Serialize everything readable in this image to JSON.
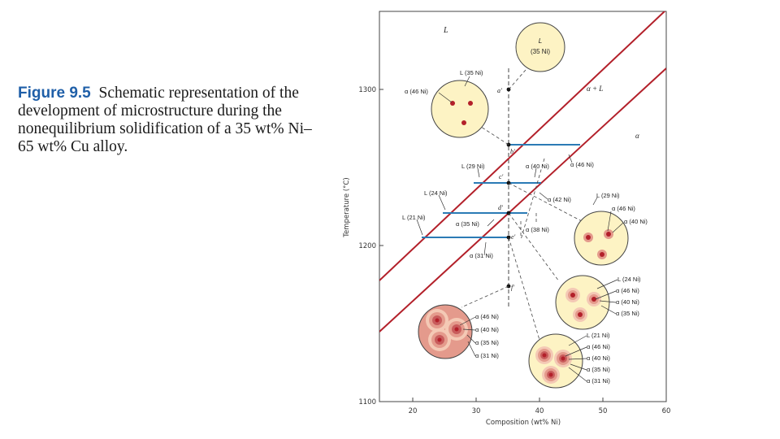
{
  "caption": {
    "figure_label": "Figure 9.5",
    "text": "Schematic representation of the development of microstructure during the nonequilibrium solidification of a 35 wt% Ni–65 wt% Cu alloy."
  },
  "axes": {
    "xlabel": "Composition (wt% Ni)",
    "ylabel": "Temperature (°C)",
    "x_ticks": [
      "20",
      "30",
      "40",
      "50",
      "60"
    ],
    "y_ticks": [
      "1100",
      "1200",
      "1300"
    ]
  },
  "regions": {
    "liquid": "L",
    "two_phase": "α + L",
    "solid": "α"
  },
  "points": {
    "a": "a'",
    "b": "b'",
    "c": "c'",
    "d": "d'",
    "e": "e'",
    "f": "f'"
  },
  "labels": {
    "circle_a": [
      "L",
      "(35 Ni)"
    ],
    "circle_b_l": "L (35 Ni)",
    "circle_b_alpha": "α (46 Ni)",
    "alpha46_tie": "α (46 Ni)",
    "l29": "L (29 Ni)",
    "alpha40": "α (40 Ni)",
    "l24": "L (24 Ni)",
    "alpha42": "α (42 Ni)",
    "l21": "L (21 Ni)",
    "alpha35": "α (35 Ni)",
    "alpha38": "α (38 Ni)",
    "alpha31": "α (31 Ni)",
    "circle_c": [
      "L (29 Ni)",
      "α (46 Ni)",
      "α (40 Ni)"
    ],
    "circle_d": [
      "L (24 Ni)",
      "α (46 Ni)",
      "α (40 Ni)",
      "α (35 Ni)"
    ],
    "circle_e": [
      "L (21 Ni)",
      "α (46 Ni)",
      "α (40 Ni)",
      "α (35 Ni)",
      "α (31 Ni)"
    ],
    "circle_f": [
      "α (46 Ni)",
      "α (40 Ni)",
      "α (35 Ni)",
      "α (31 Ni)"
    ]
  },
  "colors": {
    "phase_boundary": "#b3202a",
    "tie_line": "#2b7bb5",
    "grain_fill": "#fdf3c4",
    "grain_core": "#b3202a",
    "grain_rings": [
      "#c85c5c",
      "#e49a8c",
      "#f4c9b5"
    ]
  }
}
